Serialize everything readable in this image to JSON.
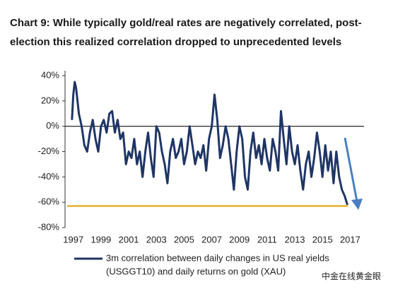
{
  "chart_data": {
    "type": "line",
    "title_lines": [
      "Chart 9: While typically gold/real rates are negatively correlated, post-",
      "election this realized correlation dropped to unprecedented levels"
    ],
    "x": [
      1996.9,
      1997.0,
      1997.1,
      1997.2,
      1997.4,
      1997.6,
      1997.8,
      1998.0,
      1998.2,
      1998.4,
      1998.6,
      1998.8,
      1999.0,
      1999.2,
      1999.4,
      1999.6,
      1999.8,
      2000.0,
      2000.2,
      2000.4,
      2000.6,
      2000.8,
      2001.0,
      2001.2,
      2001.4,
      2001.6,
      2001.8,
      2002.0,
      2002.2,
      2002.4,
      2002.6,
      2002.8,
      2003.0,
      2003.2,
      2003.4,
      2003.6,
      2003.8,
      2004.0,
      2004.2,
      2004.4,
      2004.6,
      2004.8,
      2005.0,
      2005.2,
      2005.4,
      2005.6,
      2005.8,
      2006.0,
      2006.2,
      2006.4,
      2006.6,
      2006.8,
      2007.0,
      2007.2,
      2007.4,
      2007.6,
      2007.8,
      2008.0,
      2008.2,
      2008.4,
      2008.6,
      2008.8,
      2009.0,
      2009.2,
      2009.4,
      2009.6,
      2009.8,
      2010.0,
      2010.2,
      2010.4,
      2010.6,
      2010.8,
      2011.0,
      2011.2,
      2011.4,
      2011.6,
      2011.8,
      2012.0,
      2012.2,
      2012.4,
      2012.6,
      2012.8,
      2013.0,
      2013.2,
      2013.4,
      2013.6,
      2013.8,
      2014.0,
      2014.2,
      2014.4,
      2014.6,
      2014.8,
      2015.0,
      2015.2,
      2015.4,
      2015.6,
      2015.8,
      2016.0,
      2016.2,
      2016.4,
      2016.6,
      2016.8
    ],
    "series": [
      {
        "name": "3m correlation between daily changes in US real yields (USGGT10) and daily returns on gold (XAU)",
        "color": "#1f3566",
        "values": [
          5,
          25,
          35,
          30,
          10,
          0,
          -15,
          -20,
          -5,
          5,
          -10,
          -20,
          0,
          5,
          -5,
          10,
          12,
          -5,
          5,
          -10,
          -5,
          -30,
          -20,
          -25,
          -10,
          -30,
          -20,
          -40,
          -20,
          -5,
          -25,
          -40,
          0,
          -5,
          -20,
          -30,
          -45,
          -20,
          -10,
          -25,
          -20,
          -10,
          -30,
          -20,
          0,
          -15,
          -30,
          -20,
          -25,
          -15,
          -35,
          -10,
          0,
          25,
          5,
          -25,
          -15,
          0,
          -10,
          -30,
          -50,
          -20,
          0,
          -10,
          -40,
          -50,
          -20,
          -5,
          -25,
          -15,
          -30,
          -10,
          -25,
          -35,
          -10,
          -20,
          -35,
          12,
          -10,
          -30,
          0,
          -20,
          -30,
          -15,
          -35,
          -50,
          -30,
          -20,
          -40,
          -25,
          -5,
          -20,
          -40,
          -15,
          -35,
          -20,
          -45,
          -20,
          -40,
          -50,
          -55,
          -62
        ]
      }
    ],
    "legend_lines": [
      "3m correlation between daily changes in US real yields",
      "(USGGT10) and daily returns on gold (XAU)"
    ],
    "hline": {
      "value": -63,
      "color": "#e3b12a"
    },
    "xlim": [
      1996.4,
      2018
    ],
    "xticks": [
      1997,
      1999,
      2001,
      2003,
      2005,
      2007,
      2009,
      2011,
      2013,
      2015,
      2017
    ],
    "ylim": [
      -80,
      40
    ],
    "yticks": [
      {
        "value": 40,
        "label": "40%"
      },
      {
        "value": 20,
        "label": "20%"
      },
      {
        "value": 0,
        "label": "0%"
      },
      {
        "value": -20,
        "label": "-20%"
      },
      {
        "value": -40,
        "label": "-40%"
      },
      {
        "value": -60,
        "label": "-60%"
      },
      {
        "value": -80,
        "label": "-80%"
      }
    ],
    "watermark": "中金在线黄金眼"
  }
}
